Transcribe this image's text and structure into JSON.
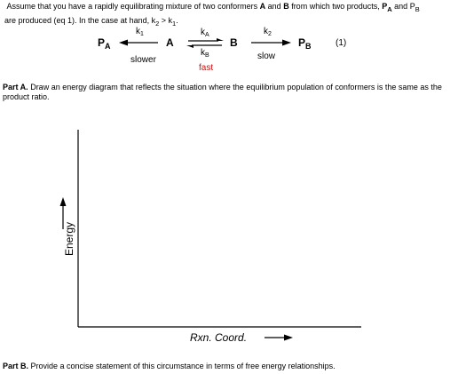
{
  "intro": {
    "t1": "Assume that you have a rapidly equilibrating mixture of two conformers ",
    "A": "A",
    "t2": " and ",
    "B": "B",
    "t3": " from which two products, ",
    "PA_P": "P",
    "PA_sub": "A",
    "t4": " and P",
    "PB_sub": "B",
    "t5": "are produced (eq 1). In the case at hand, k",
    "k2_sub": "2",
    "t6": " > k",
    "k1_sub": "1",
    "t7": "."
  },
  "scheme": {
    "PA": "P",
    "PA_sub": "A",
    "A": "A",
    "B": "B",
    "PB": "P",
    "PB_sub": "B",
    "k1": "k",
    "k1_sub": "1",
    "kA": "k",
    "kA_sub": "A",
    "kB": "k",
    "kB_sub": "B",
    "k2": "k",
    "k2_sub": "2",
    "slower": "slower",
    "fast": "fast",
    "slow": "slow",
    "eq_number": "(1)",
    "fast_color": "#d01010"
  },
  "partA": {
    "label": "Part A.",
    "text": " Draw an energy diagram that reflects the situation where the equilibrium population of conformers is the same as the product ratio."
  },
  "graph": {
    "y_label": "Energy",
    "x_label": "Rxn. Coord."
  },
  "partB": {
    "label": "Part B.",
    "text": "  Provide a concise statement of this circumstance in terms of free energy relationships."
  }
}
